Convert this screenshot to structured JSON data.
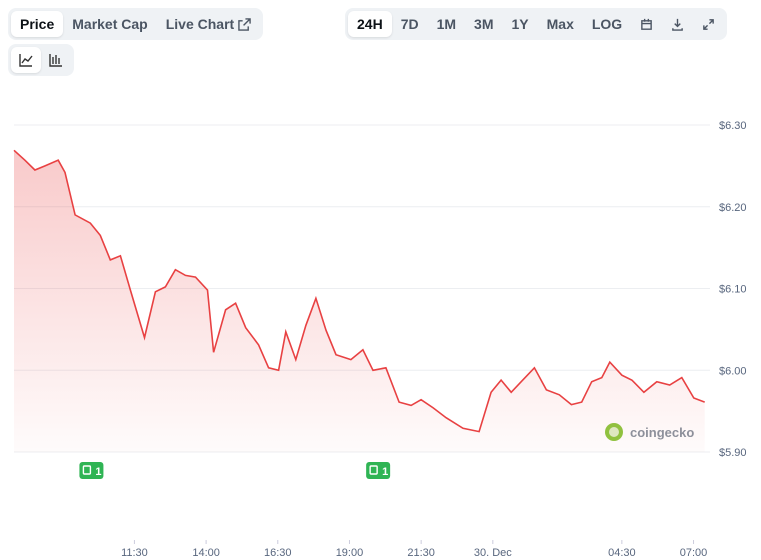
{
  "toolbar": {
    "tabs": [
      "Price",
      "Market Cap",
      "Live Chart"
    ],
    "ranges": [
      "24H",
      "7D",
      "1M",
      "3M",
      "1Y",
      "Max",
      "LOG"
    ]
  },
  "watermark": "coingecko",
  "chart_data": {
    "type": "line",
    "color": "#e84142",
    "x": [
      7.3,
      7.68,
      8.03,
      8.38,
      8.84,
      9.08,
      9.43,
      9.96,
      10.31,
      10.66,
      11.01,
      11.36,
      11.85,
      12.23,
      12.58,
      12.93,
      13.28,
      13.63,
      14.05,
      14.26,
      14.68,
      15.03,
      15.38,
      15.83,
      16.18,
      16.53,
      16.78,
      17.13,
      17.48,
      17.83,
      18.18,
      18.53,
      19.05,
      19.47,
      19.82,
      20.27,
      20.73,
      21.15,
      21.5,
      21.92,
      22.37,
      22.96,
      23.52,
      23.94,
      24.29,
      24.64,
      24.99,
      25.45,
      25.87,
      26.32,
      26.74,
      27.1,
      27.45,
      27.8,
      28.08,
      28.5,
      28.85,
      29.27,
      29.72,
      30.17,
      30.59,
      31.01,
      31.39
    ],
    "values": [
      6.269,
      6.257,
      6.245,
      6.25,
      6.257,
      6.242,
      6.19,
      6.18,
      6.165,
      6.135,
      6.14,
      6.098,
      6.04,
      6.096,
      6.102,
      6.123,
      6.116,
      6.114,
      6.098,
      6.022,
      6.074,
      6.082,
      6.052,
      6.031,
      6.003,
      6.0,
      6.047,
      6.013,
      6.055,
      6.088,
      6.049,
      6.019,
      6.013,
      6.025,
      6.0,
      6.003,
      5.961,
      5.957,
      5.964,
      5.954,
      5.942,
      5.929,
      5.925,
      5.973,
      5.988,
      5.973,
      5.986,
      6.003,
      5.976,
      5.97,
      5.958,
      5.961,
      5.986,
      5.991,
      6.01,
      5.994,
      5.988,
      5.973,
      5.986,
      5.982,
      5.991,
      5.966,
      5.961
    ],
    "xlim": [
      7.3,
      31.4
    ],
    "xticks": [
      {
        "value": 11.5,
        "label": "11:30"
      },
      {
        "value": 14,
        "label": "14:00"
      },
      {
        "value": 16.5,
        "label": "16:30"
      },
      {
        "value": 19,
        "label": "19:00"
      },
      {
        "value": 21.5,
        "label": "21:30"
      },
      {
        "value": 24,
        "label": "30. Dec"
      },
      {
        "value": 28.5,
        "label": "04:30"
      },
      {
        "value": 31,
        "label": "07:00"
      }
    ],
    "ylim": [
      5.9,
      6.3
    ],
    "yticks": [
      {
        "value": 5.9,
        "label": "$5.90"
      },
      {
        "value": 6.0,
        "label": "$6.00"
      },
      {
        "value": 6.1,
        "label": "$6.10"
      },
      {
        "value": 6.2,
        "label": "$6.20"
      },
      {
        "value": 6.3,
        "label": "$6.30"
      }
    ],
    "grid": true,
    "annotations": [
      {
        "x": 10.0,
        "text": "1"
      },
      {
        "x": 20.0,
        "text": "1"
      }
    ]
  }
}
